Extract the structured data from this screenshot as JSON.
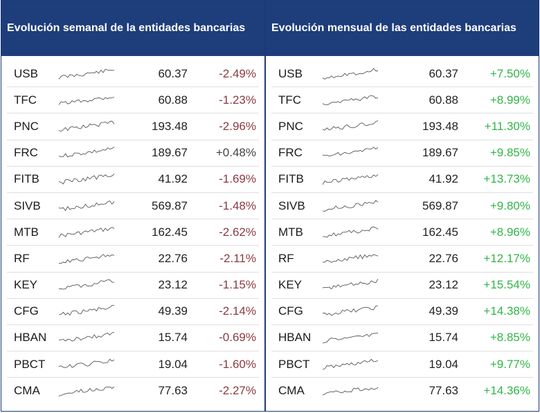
{
  "weekly": {
    "title": "Evolución semanal de la entidades bancarias",
    "rows": [
      {
        "ticker": "USB",
        "price": "60.37",
        "change": "-2.49%",
        "trend": "neg"
      },
      {
        "ticker": "TFC",
        "price": "60.88",
        "change": "-1.23%",
        "trend": "neg"
      },
      {
        "ticker": "PNC",
        "price": "193.48",
        "change": "-2.96%",
        "trend": "neg"
      },
      {
        "ticker": "FRC",
        "price": "189.67",
        "change": "+0.48%",
        "trend": "pos-neutral"
      },
      {
        "ticker": "FITB",
        "price": "41.92",
        "change": "-1.69%",
        "trend": "neg"
      },
      {
        "ticker": "SIVB",
        "price": "569.87",
        "change": "-1.48%",
        "trend": "neg"
      },
      {
        "ticker": "MTB",
        "price": "162.45",
        "change": "-2.62%",
        "trend": "neg"
      },
      {
        "ticker": "RF",
        "price": "22.76",
        "change": "-2.11%",
        "trend": "neg"
      },
      {
        "ticker": "KEY",
        "price": "23.12",
        "change": "-1.15%",
        "trend": "neg"
      },
      {
        "ticker": "CFG",
        "price": "49.39",
        "change": "-2.14%",
        "trend": "neg"
      },
      {
        "ticker": "HBAN",
        "price": "15.74",
        "change": "-0.69%",
        "trend": "neg"
      },
      {
        "ticker": "PBCT",
        "price": "19.04",
        "change": "-1.60%",
        "trend": "neg"
      },
      {
        "ticker": "CMA",
        "price": "77.63",
        "change": "-2.27%",
        "trend": "neg"
      }
    ]
  },
  "monthly": {
    "title": "Evolución mensual de las entidades bancarias",
    "rows": [
      {
        "ticker": "USB",
        "price": "60.37",
        "change": "+7.50%",
        "trend": "pos"
      },
      {
        "ticker": "TFC",
        "price": "60.88",
        "change": "+8.99%",
        "trend": "pos"
      },
      {
        "ticker": "PNC",
        "price": "193.48",
        "change": "+11.30%",
        "trend": "pos"
      },
      {
        "ticker": "FRC",
        "price": "189.67",
        "change": "+9.85%",
        "trend": "pos"
      },
      {
        "ticker": "FITB",
        "price": "41.92",
        "change": "+13.73%",
        "trend": "pos"
      },
      {
        "ticker": "SIVB",
        "price": "569.87",
        "change": "+9.80%",
        "trend": "pos"
      },
      {
        "ticker": "MTB",
        "price": "162.45",
        "change": "+8.96%",
        "trend": "pos"
      },
      {
        "ticker": "RF",
        "price": "22.76",
        "change": "+12.17%",
        "trend": "pos"
      },
      {
        "ticker": "KEY",
        "price": "23.12",
        "change": "+15.54%",
        "trend": "pos"
      },
      {
        "ticker": "CFG",
        "price": "49.39",
        "change": "+14.38%",
        "trend": "pos"
      },
      {
        "ticker": "HBAN",
        "price": "15.74",
        "change": "+8.85%",
        "trend": "pos"
      },
      {
        "ticker": "PBCT",
        "price": "19.04",
        "change": "+9.77%",
        "trend": "pos"
      },
      {
        "ticker": "CMA",
        "price": "77.63",
        "change": "+14.36%",
        "trend": "pos"
      }
    ]
  },
  "colors": {
    "header_bg": "#1e3d7b",
    "negative": "#8b3a3f",
    "positive": "#2fb548"
  },
  "icons": {
    "sparkline": "sparkline-icon"
  }
}
